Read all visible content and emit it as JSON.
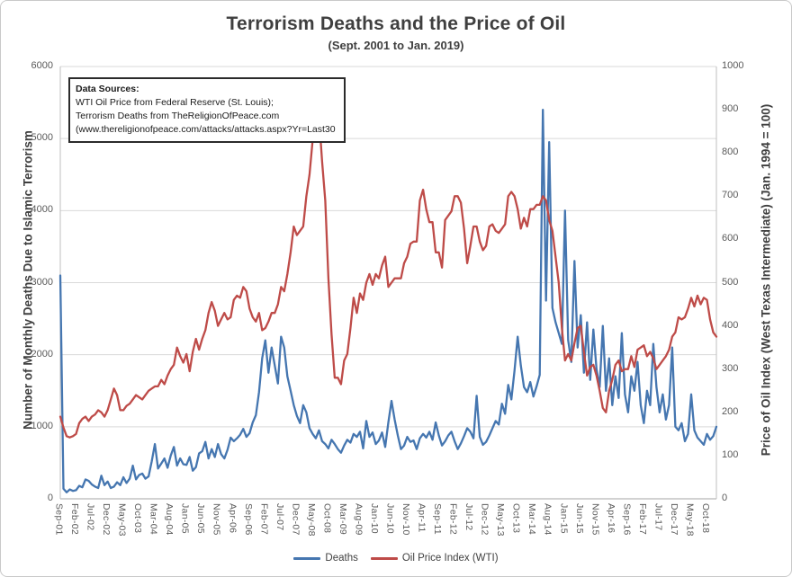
{
  "chart": {
    "title": "Terrorism Deaths and the Price of Oil",
    "subtitle": "(Sept. 2001 to Jan. 2019)"
  },
  "sources": {
    "heading": "Data Sources:",
    "lines": [
      "WTI Oil Price from Federal Reserve (St. Louis);",
      "Terrorism Deaths from TheReligionOfPeace.com",
      "(www.thereligionofpeace.com/attacks/attacks.aspx?Yr=Last30"
    ]
  },
  "legend": [
    {
      "label": "Deaths",
      "color": "#4576b0"
    },
    {
      "label": "Oil Price Index (WTI)",
      "color": "#be4b48"
    }
  ],
  "colors": {
    "deaths_line": "#4576b0",
    "oil_line": "#be4b48",
    "gridline": "#d9d9d9",
    "axis_line": "#bfbfbf",
    "tick_text": "#595959",
    "title_text": "#3f3f3f"
  },
  "chart_data": {
    "type": "line",
    "title": "Terrorism Deaths and the Price of Oil",
    "subtitle": "(Sept. 2001 to Jan. 2019)",
    "grid": "horizontal",
    "legend_position": "bottom",
    "months_per_tick": 5,
    "x_start": "Sep-01",
    "x_end": "Jan-19",
    "x_tick_labels": [
      "Sep-01",
      "Feb-02",
      "Jul-02",
      "Dec-02",
      "May-03",
      "Oct-03",
      "Mar-04",
      "Aug-04",
      "Jan-05",
      "Jun-05",
      "Nov-05",
      "Apr-06",
      "Sep-06",
      "Feb-07",
      "Jul-07",
      "Dec-07",
      "May-08",
      "Oct-08",
      "Mar-09",
      "Aug-09",
      "Jan-10",
      "Jun-10",
      "Nov-10",
      "Apr-11",
      "Sep-11",
      "Feb-12",
      "Jul-12",
      "Dec-12",
      "May-13",
      "Oct-13",
      "Mar-14",
      "Aug-14",
      "Jan-15",
      "Jun-15",
      "Nov-15",
      "Apr-16",
      "Sep-16",
      "Feb-17",
      "Jul-17",
      "Dec-17",
      "May-18",
      "Oct-18"
    ],
    "left_axis": {
      "label": "Number of Monthly Deaths Due to Islamic Terrorism",
      "range": [
        0,
        6000
      ],
      "ticks": [
        0,
        1000,
        2000,
        3000,
        4000,
        5000,
        6000
      ]
    },
    "right_axis": {
      "label": "Price of Oil Index (West Texas Intermediate) (Jan. 1994 = 100)",
      "range": [
        0,
        1000
      ],
      "ticks": [
        0,
        100,
        200,
        300,
        400,
        500,
        600,
        700,
        800,
        900,
        1000
      ]
    },
    "series": [
      {
        "name": "Deaths",
        "axis": "left",
        "color": "#4576b0",
        "values": [
          3100,
          140,
          90,
          130,
          110,
          120,
          180,
          160,
          270,
          250,
          200,
          170,
          150,
          320,
          190,
          240,
          150,
          170,
          230,
          190,
          300,
          220,
          280,
          460,
          270,
          330,
          350,
          280,
          310,
          520,
          760,
          420,
          490,
          560,
          430,
          600,
          720,
          460,
          560,
          480,
          470,
          580,
          390,
          440,
          630,
          660,
          790,
          560,
          690,
          580,
          760,
          620,
          560,
          680,
          850,
          800,
          840,
          890,
          970,
          860,
          910,
          1060,
          1160,
          1480,
          1950,
          2200,
          1750,
          2100,
          1850,
          1600,
          2250,
          2100,
          1700,
          1500,
          1300,
          1150,
          1050,
          1300,
          1200,
          980,
          900,
          840,
          950,
          800,
          760,
          700,
          820,
          760,
          690,
          640,
          740,
          820,
          780,
          900,
          860,
          930,
          700,
          1080,
          860,
          920,
          760,
          810,
          920,
          720,
          1060,
          1360,
          1100,
          880,
          690,
          740,
          860,
          790,
          810,
          690,
          840,
          900,
          850,
          930,
          820,
          1060,
          880,
          740,
          800,
          880,
          930,
          800,
          690,
          770,
          870,
          980,
          930,
          840,
          1430,
          860,
          750,
          790,
          880,
          980,
          1080,
          1030,
          1320,
          1180,
          1580,
          1380,
          1780,
          2250,
          1850,
          1550,
          1480,
          1620,
          1420,
          1560,
          1720,
          5400,
          2750,
          4950,
          2650,
          2450,
          2300,
          2150,
          4000,
          2200,
          1900,
          3300,
          2100,
          2550,
          1750,
          2450,
          1650,
          2350,
          1800,
          1550,
          2400,
          1500,
          1950,
          1300,
          1700,
          1400,
          2300,
          1450,
          1200,
          1700,
          1500,
          1900,
          1300,
          1050,
          1500,
          1300,
          2150,
          1550,
          1200,
          1450,
          1100,
          1300,
          2100,
          1000,
          950,
          1050,
          800,
          900,
          1450,
          950,
          850,
          800,
          750,
          900,
          820,
          870,
          1000
        ]
      },
      {
        "name": "Oil Price Index (WTI)",
        "axis": "right",
        "color": "#be4b48",
        "values": [
          190,
          165,
          145,
          142,
          145,
          150,
          175,
          185,
          190,
          180,
          190,
          195,
          205,
          200,
          190,
          205,
          230,
          255,
          240,
          205,
          205,
          215,
          220,
          230,
          240,
          235,
          230,
          240,
          250,
          255,
          260,
          260,
          275,
          265,
          285,
          300,
          310,
          350,
          330,
          315,
          335,
          295,
          340,
          370,
          345,
          370,
          390,
          430,
          455,
          435,
          400,
          415,
          430,
          415,
          420,
          460,
          470,
          465,
          490,
          480,
          440,
          420,
          410,
          430,
          390,
          395,
          410,
          430,
          430,
          450,
          490,
          480,
          520,
          570,
          630,
          610,
          620,
          630,
          700,
          750,
          830,
          890,
          885,
          780,
          690,
          510,
          380,
          280,
          280,
          265,
          320,
          335,
          395,
          465,
          430,
          475,
          460,
          500,
          520,
          495,
          520,
          510,
          540,
          560,
          490,
          500,
          510,
          510,
          510,
          545,
          560,
          590,
          595,
          595,
          690,
          715,
          670,
          640,
          640,
          570,
          570,
          535,
          645,
          655,
          665,
          700,
          700,
          685,
          625,
          545,
          585,
          630,
          630,
          595,
          575,
          585,
          630,
          635,
          620,
          615,
          625,
          635,
          700,
          710,
          700,
          670,
          625,
          650,
          630,
          670,
          670,
          680,
          680,
          700,
          690,
          645,
          620,
          560,
          500,
          395,
          320,
          335,
          320,
          360,
          395,
          400,
          340,
          285,
          305,
          310,
          285,
          250,
          210,
          200,
          250,
          275,
          310,
          320,
          295,
          300,
          300,
          330,
          305,
          345,
          350,
          355,
          330,
          340,
          325,
          300,
          310,
          320,
          330,
          345,
          375,
          385,
          420,
          415,
          420,
          440,
          465,
          445,
          470,
          450,
          465,
          460,
          415,
          385,
          375
        ]
      }
    ]
  }
}
